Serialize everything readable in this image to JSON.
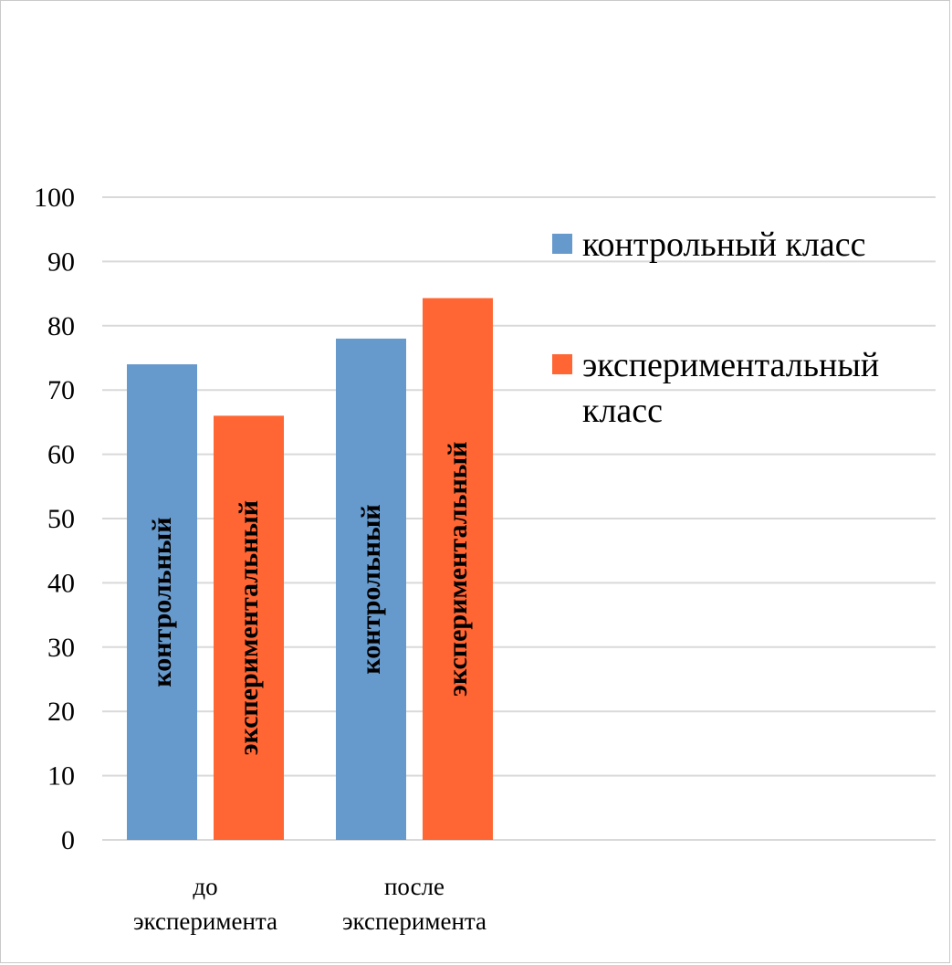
{
  "chart_data": {
    "type": "bar",
    "categories": [
      [
        "до",
        "эксперимента"
      ],
      [
        "после",
        "эксперимента"
      ]
    ],
    "series": [
      {
        "name": "контрольный класс",
        "legend_lines": [
          "контрольный класс"
        ],
        "bar_label": "контрольный",
        "color": "#6699cc",
        "values": [
          74,
          78
        ]
      },
      {
        "name": "экспериментальный класс",
        "legend_lines": [
          "экспериментальный",
          "класс"
        ],
        "bar_label": "экспериментальный",
        "color": "#ff6633",
        "values": [
          66,
          84.3
        ]
      }
    ],
    "ylim": [
      0,
      100
    ],
    "yticks": [
      0,
      10,
      20,
      30,
      40,
      50,
      60,
      70,
      80,
      90,
      100
    ],
    "grid": true,
    "legend_position": "right",
    "gridline_color": "#d9d9d9"
  }
}
